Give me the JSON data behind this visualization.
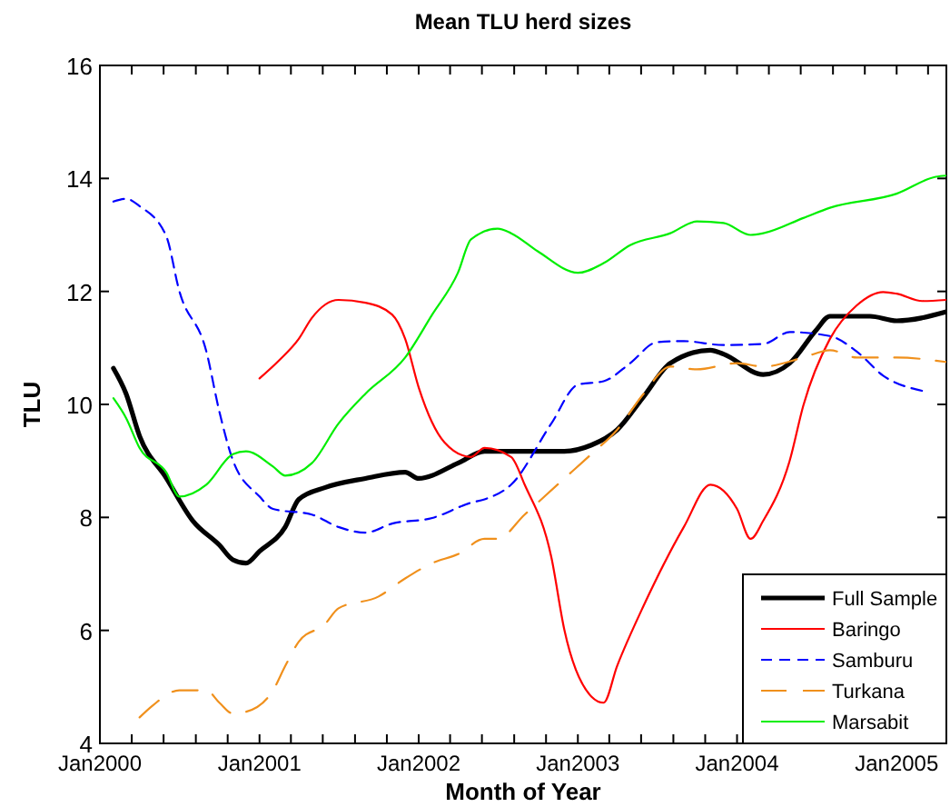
{
  "chart_data": {
    "type": "line",
    "title": "Mean TLU herd sizes",
    "xlabel": "Month of Year",
    "ylabel": "TLU",
    "xlim": [
      "2000-01-01",
      "2005-04-25"
    ],
    "xticks": [
      {
        "value": "2000-01-01",
        "label": "Jan2000"
      },
      {
        "value": "2000-03-14",
        "label": null
      },
      {
        "value": "2000-05-26",
        "label": null
      },
      {
        "value": "2000-08-08",
        "label": null
      },
      {
        "value": "2000-10-20",
        "label": null
      },
      {
        "value": "2001-01-01",
        "label": "Jan2001"
      },
      {
        "value": "2001-03-14",
        "label": null
      },
      {
        "value": "2001-05-26",
        "label": null
      },
      {
        "value": "2001-08-08",
        "label": null
      },
      {
        "value": "2001-10-20",
        "label": null
      },
      {
        "value": "2002-01-01",
        "label": "Jan2002"
      },
      {
        "value": "2002-03-14",
        "label": null
      },
      {
        "value": "2002-05-26",
        "label": null
      },
      {
        "value": "2002-08-08",
        "label": null
      },
      {
        "value": "2002-10-20",
        "label": null
      },
      {
        "value": "2003-01-01",
        "label": "Jan2003"
      },
      {
        "value": "2003-03-14",
        "label": null
      },
      {
        "value": "2003-05-26",
        "label": null
      },
      {
        "value": "2003-08-08",
        "label": null
      },
      {
        "value": "2003-10-20",
        "label": null
      },
      {
        "value": "2004-01-01",
        "label": "Jan2004"
      },
      {
        "value": "2004-03-14",
        "label": null
      },
      {
        "value": "2004-05-26",
        "label": null
      },
      {
        "value": "2004-08-08",
        "label": null
      },
      {
        "value": "2004-10-20",
        "label": null
      },
      {
        "value": "2005-01-01",
        "label": "Jan2005"
      },
      {
        "value": "2005-03-14",
        "label": null
      }
    ],
    "ylim": [
      4,
      16
    ],
    "yticks": [
      4,
      6,
      8,
      10,
      12,
      14,
      16
    ],
    "grid": false,
    "legend": "bottom right",
    "series": [
      {
        "name": "Full Sample",
        "color": "#000000",
        "line_style": "solid",
        "x": [
          "2000-02",
          "2000-03",
          "2000-04",
          "2000-06",
          "2000-08",
          "2000-10",
          "2000-11",
          "2000-12",
          "2001-01",
          "2001-03",
          "2001-04",
          "2001-06",
          "2001-09",
          "2001-12",
          "2002-01",
          "2002-04",
          "2002-06",
          "2002-08",
          "2002-12",
          "2003-02",
          "2003-04",
          "2003-06",
          "2003-08",
          "2003-11",
          "2003-12",
          "2004-03",
          "2004-05",
          "2004-07",
          "2004-08",
          "2004-11",
          "2005-01",
          "2005-04-25"
        ],
        "values": [
          10.64,
          10.19,
          9.44,
          8.7,
          7.94,
          7.51,
          7.25,
          7.19,
          7.4,
          7.83,
          8.32,
          8.53,
          8.69,
          8.8,
          8.69,
          8.96,
          9.17,
          9.17,
          9.17,
          9.28,
          9.55,
          10.14,
          10.73,
          10.96,
          10.89,
          10.53,
          10.73,
          11.32,
          11.56,
          11.56,
          11.48,
          11.64
        ]
      },
      {
        "name": "Baringo",
        "color": "#ff0000",
        "line_style": "solid",
        "x": [
          "2001-01",
          "2001-02-15",
          "2001-04",
          "2001-05",
          "2001-07",
          "2001-09",
          "2001-11",
          "2001-12",
          "2002-01",
          "2002-03",
          "2002-05",
          "2002-06",
          "2002-08",
          "2002-09",
          "2002-11",
          "2002-12",
          "2003-02",
          "2003-03",
          "2003-04",
          "2003-06",
          "2003-09",
          "2003-11",
          "2004-01",
          "2004-02",
          "2004-03",
          "2004-05",
          "2004-06",
          "2004-08",
          "2004-10",
          "2004-12",
          "2005-01",
          "2005-03",
          "2005-04-25"
        ],
        "values": [
          10.46,
          10.78,
          11.16,
          11.53,
          11.85,
          11.8,
          11.59,
          11.16,
          10.3,
          9.33,
          9.07,
          9.23,
          9.07,
          8.58,
          7.3,
          6.01,
          4.83,
          4.72,
          5.37,
          6.44,
          7.83,
          8.58,
          8.15,
          7.62,
          7.94,
          9.01,
          9.98,
          11.16,
          11.75,
          11.99,
          11.96,
          11.83,
          11.85
        ]
      },
      {
        "name": "Samburu",
        "color": "#0000ff",
        "line_style": "dashed",
        "x": [
          "2000-02",
          "2000-03",
          "2000-04",
          "2000-06",
          "2000-07",
          "2000-09",
          "2000-10",
          "2000-11",
          "2001-01",
          "2001-02",
          "2001-05",
          "2001-07",
          "2001-09",
          "2001-11",
          "2002-02",
          "2002-05",
          "2002-06",
          "2002-08",
          "2002-11",
          "2003-01",
          "2003-03",
          "2003-05",
          "2003-07",
          "2003-09",
          "2003-12",
          "2004-03",
          "2004-05",
          "2004-08",
          "2004-10",
          "2004-12",
          "2005-03"
        ],
        "values": [
          13.59,
          13.64,
          13.51,
          12.98,
          12.01,
          10.94,
          9.87,
          9.01,
          8.37,
          8.15,
          8.05,
          7.83,
          7.73,
          7.89,
          7.99,
          8.26,
          8.32,
          8.58,
          9.66,
          10.35,
          10.41,
          10.73,
          11.1,
          11.12,
          11.05,
          11.07,
          11.28,
          11.21,
          10.94,
          10.51,
          10.24
        ]
      },
      {
        "name": "Turkana",
        "color": "#f0901c",
        "line_style": "long_dashed",
        "x": [
          "2000-04",
          "2000-05",
          "2000-07",
          "2000-09",
          "2000-10",
          "2000-11",
          "2000-12",
          "2001-02",
          "2001-03",
          "2001-04",
          "2001-06",
          "2001-07",
          "2001-10",
          "2001-12",
          "2002-02",
          "2002-04",
          "2002-06",
          "2002-07",
          "2002-09",
          "2002-12",
          "2003-02",
          "2003-04",
          "2003-06",
          "2003-08",
          "2003-10",
          "2004-01",
          "2004-03",
          "2004-06",
          "2004-08",
          "2004-10",
          "2005-01",
          "2005-04-25"
        ],
        "values": [
          4.46,
          4.67,
          4.94,
          4.94,
          4.72,
          4.53,
          4.56,
          4.94,
          5.37,
          5.8,
          6.12,
          6.39,
          6.6,
          6.92,
          7.19,
          7.35,
          7.62,
          7.62,
          8.05,
          8.69,
          9.12,
          9.55,
          10.19,
          10.67,
          10.62,
          10.73,
          10.67,
          10.83,
          10.96,
          10.83,
          10.83,
          10.75
        ]
      },
      {
        "name": "Marsabit",
        "color": "#00ee00",
        "line_style": "solid",
        "x": [
          "2000-02",
          "2000-03",
          "2000-04",
          "2000-06",
          "2000-07",
          "2000-09",
          "2000-11",
          "2000-12",
          "2001-02",
          "2001-03",
          "2001-05",
          "2001-07",
          "2001-09",
          "2001-12",
          "2002-02",
          "2002-04",
          "2002-05",
          "2002-07",
          "2002-08",
          "2002-10",
          "2003-01",
          "2003-03",
          "2003-05",
          "2003-08",
          "2003-10",
          "2003-12",
          "2004-02",
          "2004-03",
          "2004-06",
          "2004-08",
          "2005-01",
          "2005-04",
          "2005-04-25"
        ],
        "values": [
          10.11,
          9.76,
          9.23,
          8.8,
          8.37,
          8.58,
          9.12,
          9.17,
          8.9,
          8.74,
          8.96,
          9.66,
          10.19,
          10.83,
          11.59,
          12.33,
          12.92,
          13.11,
          13.03,
          12.71,
          12.33,
          12.5,
          12.82,
          13.03,
          13.24,
          13.21,
          13.0,
          13.03,
          13.3,
          13.48,
          13.73,
          14.03,
          14.05
        ]
      }
    ]
  }
}
